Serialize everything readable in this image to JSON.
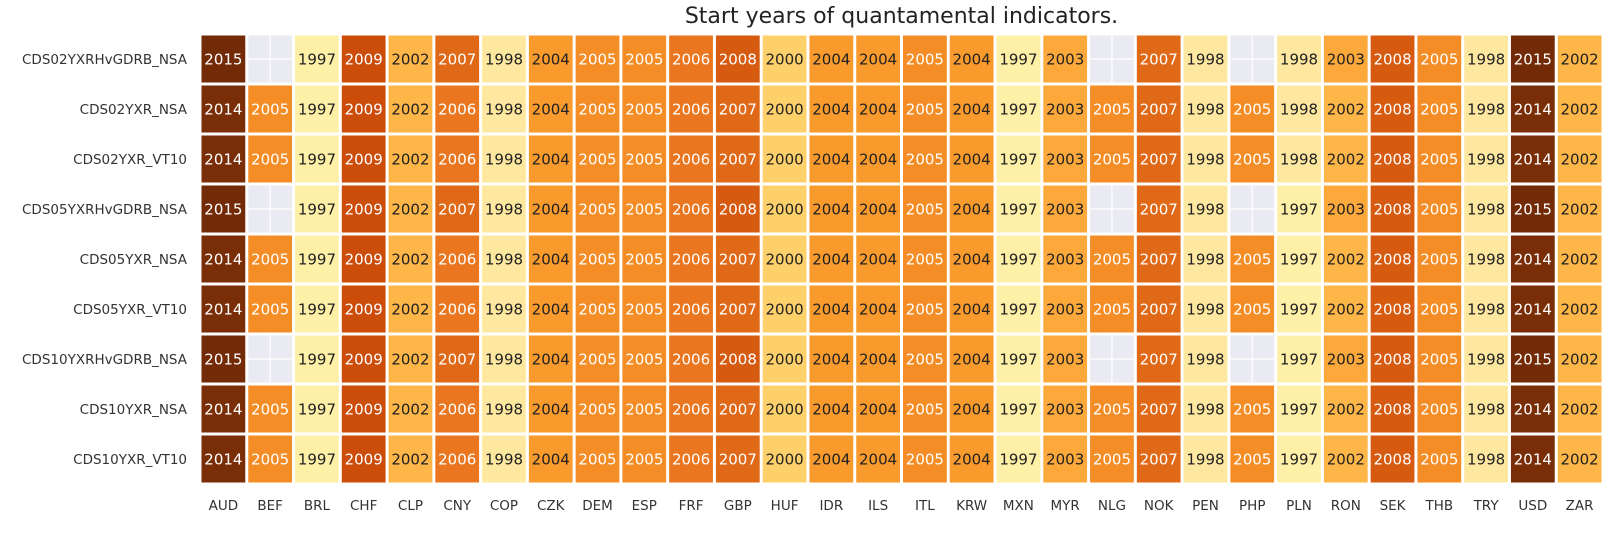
{
  "chart_data": {
    "type": "heatmap",
    "title": "Start years of quantamental indicators.",
    "xlabel": "",
    "ylabel": "",
    "columns": [
      "AUD",
      "BEF",
      "BRL",
      "CHF",
      "CLP",
      "CNY",
      "COP",
      "CZK",
      "DEM",
      "ESP",
      "FRF",
      "GBP",
      "HUF",
      "IDR",
      "ILS",
      "ITL",
      "KRW",
      "MXN",
      "MYR",
      "NLG",
      "NOK",
      "PEN",
      "PHP",
      "PLN",
      "RON",
      "SEK",
      "THB",
      "TRY",
      "USD",
      "ZAR"
    ],
    "rows": [
      "CDS02YXRHvGDRB_NSA",
      "CDS02YXR_NSA",
      "CDS02YXR_VT10",
      "CDS05YXRHvGDRB_NSA",
      "CDS05YXR_NSA",
      "CDS05YXR_VT10",
      "CDS10YXRHvGDRB_NSA",
      "CDS10YXR_NSA",
      "CDS10YXR_VT10"
    ],
    "values": [
      [
        2015,
        null,
        1997,
        2009,
        2002,
        2007,
        1998,
        2004,
        2005,
        2005,
        2006,
        2008,
        2000,
        2004,
        2004,
        2005,
        2004,
        1997,
        2003,
        null,
        2007,
        1998,
        null,
        1998,
        2003,
        2008,
        2005,
        1998,
        2015,
        2002
      ],
      [
        2014,
        2005,
        1997,
        2009,
        2002,
        2006,
        1998,
        2004,
        2005,
        2005,
        2006,
        2007,
        2000,
        2004,
        2004,
        2005,
        2004,
        1997,
        2003,
        2005,
        2007,
        1998,
        2005,
        1998,
        2002,
        2008,
        2005,
        1998,
        2014,
        2002
      ],
      [
        2014,
        2005,
        1997,
        2009,
        2002,
        2006,
        1998,
        2004,
        2005,
        2005,
        2006,
        2007,
        2000,
        2004,
        2004,
        2005,
        2004,
        1997,
        2003,
        2005,
        2007,
        1998,
        2005,
        1998,
        2002,
        2008,
        2005,
        1998,
        2014,
        2002
      ],
      [
        2015,
        null,
        1997,
        2009,
        2002,
        2007,
        1998,
        2004,
        2005,
        2005,
        2006,
        2008,
        2000,
        2004,
        2004,
        2005,
        2004,
        1997,
        2003,
        null,
        2007,
        1998,
        null,
        1997,
        2003,
        2008,
        2005,
        1998,
        2015,
        2002
      ],
      [
        2014,
        2005,
        1997,
        2009,
        2002,
        2006,
        1998,
        2004,
        2005,
        2005,
        2006,
        2007,
        2000,
        2004,
        2004,
        2005,
        2004,
        1997,
        2003,
        2005,
        2007,
        1998,
        2005,
        1997,
        2002,
        2008,
        2005,
        1998,
        2014,
        2002
      ],
      [
        2014,
        2005,
        1997,
        2009,
        2002,
        2006,
        1998,
        2004,
        2005,
        2005,
        2006,
        2007,
        2000,
        2004,
        2004,
        2005,
        2004,
        1997,
        2003,
        2005,
        2007,
        1998,
        2005,
        1997,
        2002,
        2008,
        2005,
        1998,
        2014,
        2002
      ],
      [
        2015,
        null,
        1997,
        2009,
        2002,
        2007,
        1998,
        2004,
        2005,
        2005,
        2006,
        2008,
        2000,
        2004,
        2004,
        2005,
        2004,
        1997,
        2003,
        null,
        2007,
        1998,
        null,
        1997,
        2003,
        2008,
        2005,
        1998,
        2015,
        2002
      ],
      [
        2014,
        2005,
        1997,
        2009,
        2002,
        2006,
        1998,
        2004,
        2005,
        2005,
        2006,
        2007,
        2000,
        2004,
        2004,
        2005,
        2004,
        1997,
        2003,
        2005,
        2007,
        1998,
        2005,
        1997,
        2002,
        2008,
        2005,
        1998,
        2014,
        2002
      ],
      [
        2014,
        2005,
        1997,
        2009,
        2002,
        2006,
        1998,
        2004,
        2005,
        2005,
        2006,
        2007,
        2000,
        2004,
        2004,
        2005,
        2004,
        1997,
        2003,
        2005,
        2007,
        1998,
        2005,
        1997,
        2002,
        2008,
        2005,
        1998,
        2014,
        2002
      ]
    ],
    "colormap": {
      "1997": "#fff0a8",
      "1998": "#fee8a0",
      "2000": "#fed06a",
      "2002": "#fdb647",
      "2003": "#fca83b",
      "2004": "#f99a2c",
      "2005": "#f48d26",
      "2006": "#ea7720",
      "2007": "#e06918",
      "2008": "#d65a10",
      "2009": "#cc4c0a",
      "2014": "#7a2e07",
      "2015": "#732a06"
    },
    "missing_color": "#eaeaf2",
    "text_dark": "#222222",
    "text_light": "#ffffff",
    "light_text_threshold": 2005
  }
}
